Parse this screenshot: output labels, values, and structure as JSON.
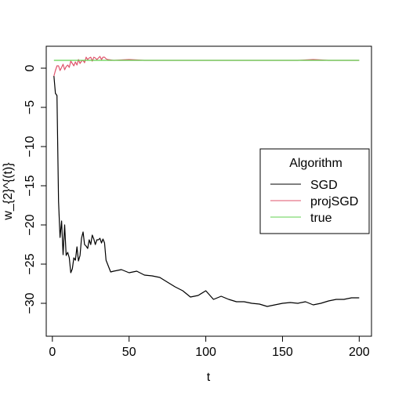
{
  "chart_data": {
    "type": "line",
    "title": "",
    "xlabel": "t",
    "ylabel": "w_{2}^{(t)}",
    "xlim": [
      -4,
      208
    ],
    "ylim": [
      -34.2,
      2.8
    ],
    "xticks": [
      0,
      50,
      100,
      150,
      200
    ],
    "yticks": [
      0,
      -5,
      -10,
      -15,
      -20,
      -25,
      -30
    ],
    "grid": false,
    "legend": {
      "title": "Algorithm",
      "position": "right",
      "entries": [
        "SGD",
        "projSGD",
        "true"
      ]
    },
    "series": [
      {
        "name": "SGD",
        "color": "#000000",
        "x": [
          1,
          2,
          3,
          4,
          5,
          6,
          7,
          8,
          9,
          10,
          11,
          12,
          13,
          14,
          15,
          16,
          17,
          18,
          19,
          20,
          21,
          22,
          23,
          24,
          25,
          26,
          27,
          28,
          29,
          30,
          31,
          32,
          33,
          34,
          35,
          38,
          40,
          45,
          50,
          55,
          60,
          65,
          70,
          75,
          80,
          85,
          90,
          95,
          100,
          105,
          110,
          115,
          120,
          125,
          130,
          135,
          140,
          145,
          150,
          155,
          160,
          165,
          170,
          175,
          180,
          185,
          190,
          195,
          200
        ],
        "y": [
          -1,
          -3.2,
          -3.5,
          -17,
          -21.6,
          -19.5,
          -23.8,
          -20,
          -23.9,
          -23.5,
          -24.2,
          -26.1,
          -25.6,
          -24.2,
          -24.5,
          -22.8,
          -24.6,
          -23.9,
          -21.7,
          -20.9,
          -22.5,
          -22.7,
          -23.0,
          -21.9,
          -22.5,
          -21.3,
          -21.8,
          -22.5,
          -21.9,
          -21.9,
          -21.7,
          -22.3,
          -21.8,
          -22.3,
          -24.5,
          -26.0,
          -25.9,
          -25.7,
          -26.1,
          -25.9,
          -26.4,
          -26.5,
          -26.7,
          -27.3,
          -27.9,
          -28.4,
          -29.2,
          -29.0,
          -28.4,
          -29.5,
          -29.1,
          -29.5,
          -29.8,
          -29.8,
          -30.0,
          -30.1,
          -30.4,
          -30.2,
          -30.0,
          -29.9,
          -30.0,
          -29.8,
          -30.2,
          -30.0,
          -29.7,
          -29.5,
          -29.5,
          -29.3,
          -29.3
        ]
      },
      {
        "name": "projSGD",
        "color": "#df536b",
        "x": [
          1,
          2,
          3,
          4,
          5,
          6,
          7,
          8,
          9,
          10,
          11,
          12,
          13,
          14,
          15,
          16,
          17,
          18,
          19,
          20,
          21,
          22,
          23,
          24,
          25,
          26,
          27,
          28,
          29,
          30,
          31,
          32,
          33,
          34,
          35,
          36,
          40,
          50,
          60,
          80,
          100,
          120,
          140,
          160,
          170,
          180,
          200
        ],
        "y": [
          -1,
          -0.3,
          0.3,
          0.3,
          -0.3,
          0.1,
          0.5,
          -0.2,
          0.2,
          0.4,
          0.1,
          0.9,
          0.6,
          0.3,
          0.8,
          0.4,
          1.1,
          0.6,
          0.9,
          1.0,
          0.7,
          1.4,
          1.1,
          1.3,
          1.4,
          0.9,
          1.4,
          1.3,
          1.1,
          1.3,
          1.5,
          1.1,
          1.4,
          1.4,
          1.2,
          1.1,
          1.0,
          1.1,
          1.0,
          1.0,
          1.0,
          1.0,
          1.0,
          1.0,
          1.1,
          1.0,
          1.0
        ]
      },
      {
        "name": "true",
        "color": "#61d04f",
        "x": [
          1,
          200
        ],
        "y": [
          1,
          1
        ]
      }
    ]
  }
}
